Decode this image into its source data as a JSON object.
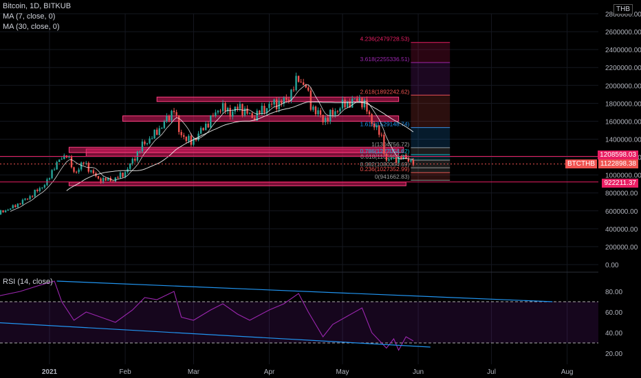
{
  "header": {
    "symbol_line": "Bitcoin, 1D, BITKUB",
    "ma7_label": "MA (7, close, 0)",
    "ma30_label": "MA (30, close, 0)",
    "currency": "THB"
  },
  "rsi_panel": {
    "label": "RSI (14, close)"
  },
  "price_badges": {
    "upper": "1208598.03",
    "ticker": "BTCTHB",
    "last": "1122898.38",
    "lower": "922211.37"
  },
  "colors": {
    "background": "#000000",
    "up": "#26a69a",
    "down": "#ef5350",
    "zone": "#d81b60",
    "ma": "#ffffff",
    "rsi": "#9c27b0",
    "trendline": "#2196f3"
  },
  "chart_data": [
    {
      "type": "candlestick",
      "title": "Bitcoin, 1D, BITKUB",
      "ylabel": "THB",
      "ylim": [
        0,
        2800000
      ],
      "y_ticks": [
        "2800000.00",
        "2600000.00",
        "2400000.00",
        "2200000.00",
        "2000000.00",
        "1800000.00",
        "1600000.00",
        "1400000.00",
        "1200000.00",
        "1000000.00",
        "800000.00",
        "600000.00",
        "400000.00",
        "200000.00",
        "0.00"
      ],
      "x_ticks": [
        "2021",
        "Feb",
        "Mar",
        "Apr",
        "May",
        "Jun",
        "Jul",
        "Aug"
      ],
      "close_path": [
        {
          "x": "2020-12-10",
          "y": 560000
        },
        {
          "x": "2020-12-17",
          "y": 640000
        },
        {
          "x": "2020-12-24",
          "y": 760000
        },
        {
          "x": "2020-12-31",
          "y": 920000
        },
        {
          "x": "2021-01-03",
          "y": 1100000
        },
        {
          "x": "2021-01-08",
          "y": 1240000
        },
        {
          "x": "2021-01-11",
          "y": 1020000
        },
        {
          "x": "2021-01-15",
          "y": 1140000
        },
        {
          "x": "2021-01-21",
          "y": 950000
        },
        {
          "x": "2021-01-27",
          "y": 940000
        },
        {
          "x": "2021-02-01",
          "y": 1030000
        },
        {
          "x": "2021-02-08",
          "y": 1330000
        },
        {
          "x": "2021-02-13",
          "y": 1450000
        },
        {
          "x": "2021-02-19",
          "y": 1650000
        },
        {
          "x": "2021-02-21",
          "y": 1750000
        },
        {
          "x": "2021-02-23",
          "y": 1480000
        },
        {
          "x": "2021-02-28",
          "y": 1360000
        },
        {
          "x": "2021-03-05",
          "y": 1520000
        },
        {
          "x": "2021-03-12",
          "y": 1760000
        },
        {
          "x": "2021-03-16",
          "y": 1700000
        },
        {
          "x": "2021-03-20",
          "y": 1760000
        },
        {
          "x": "2021-03-25",
          "y": 1640000
        },
        {
          "x": "2021-04-01",
          "y": 1780000
        },
        {
          "x": "2021-04-08",
          "y": 1830000
        },
        {
          "x": "2021-04-13",
          "y": 2080000
        },
        {
          "x": "2021-04-16",
          "y": 1980000
        },
        {
          "x": "2021-04-18",
          "y": 1780000
        },
        {
          "x": "2021-04-23",
          "y": 1620000
        },
        {
          "x": "2021-04-25",
          "y": 1640000
        },
        {
          "x": "2021-05-01",
          "y": 1780000
        },
        {
          "x": "2021-05-08",
          "y": 1850000
        },
        {
          "x": "2021-05-10",
          "y": 1780000
        },
        {
          "x": "2021-05-13",
          "y": 1600000
        },
        {
          "x": "2021-05-17",
          "y": 1420000
        },
        {
          "x": "2021-05-19",
          "y": 1150000
        },
        {
          "x": "2021-05-21",
          "y": 1180000
        },
        {
          "x": "2021-05-24",
          "y": 1180000
        },
        {
          "x": "2021-05-27",
          "y": 1200000
        },
        {
          "x": "2021-05-30",
          "y": 1122898
        }
      ],
      "support_resistance_zones": [
        {
          "from": "2021-01-16",
          "to": "2021-05-24",
          "low": 1210000,
          "high": 1290000
        },
        {
          "from": "2021-01-31",
          "to": "2021-05-24",
          "low": 1600000,
          "high": 1660000
        },
        {
          "from": "2021-02-14",
          "to": "2021-05-24",
          "low": 1820000,
          "high": 1870000
        },
        {
          "from": "2021-01-09",
          "to": "2021-05-26",
          "low": 1250000,
          "high": 1310000
        },
        {
          "from": "2021-01-09",
          "to": "2021-05-27",
          "low": 880000,
          "high": 920000
        }
      ],
      "fibonacci": [
        {
          "level": "0",
          "value": 941662.83,
          "label": "0(941662.83)",
          "color": "#9e9e9e"
        },
        {
          "level": "0.236",
          "value": 1027352.99,
          "label": "0.236(1027352.99)",
          "color": "#ef5350"
        },
        {
          "level": "0.382",
          "value": 1080364.69,
          "label": "0.382(1080364.69)",
          "color": "#9e9e9e"
        },
        {
          "level": "0.618",
          "value": 1165950.99,
          "label": "0.618(1165950.99)",
          "color": "#9e9e9e"
        },
        {
          "level": "0.786",
          "value": 1227054.62,
          "label": "0.786(1227054.62)",
          "color": "#00bcd4"
        },
        {
          "level": "1",
          "value": 1304756.72,
          "label": "1(1304756.72)",
          "color": "#9e9e9e"
        },
        {
          "level": "1.618",
          "value": 1529148.74,
          "label": "1.618(1529148.74)",
          "color": "#2196f3"
        },
        {
          "level": "2.618",
          "value": 1892242.62,
          "label": "2.618(1892242.62)",
          "color": "#ef5350"
        },
        {
          "level": "3.618",
          "value": 2255336.51,
          "label": "3.618(2255336.51)",
          "color": "#9c27b0"
        },
        {
          "level": "4.236",
          "value": 2479728.53,
          "label": "4.236(2479728.53)",
          "color": "#e91e63"
        }
      ],
      "horizontal_lines": [
        1208598.03,
        922211.37
      ]
    },
    {
      "type": "line",
      "title": "RSI (14, close)",
      "ylim": [
        10,
        100
      ],
      "y_ticks": [
        "80.00",
        "60.00",
        "40.00",
        "20.00"
      ],
      "overbought": 70,
      "oversold": 30,
      "rsi_path": [
        {
          "x": "2020-12-10",
          "y": 75
        },
        {
          "x": "2020-12-20",
          "y": 80
        },
        {
          "x": "2020-12-28",
          "y": 86
        },
        {
          "x": "2021-01-03",
          "y": 90
        },
        {
          "x": "2021-01-06",
          "y": 70
        },
        {
          "x": "2021-01-11",
          "y": 52
        },
        {
          "x": "2021-01-16",
          "y": 60
        },
        {
          "x": "2021-01-22",
          "y": 55
        },
        {
          "x": "2021-01-28",
          "y": 50
        },
        {
          "x": "2021-02-04",
          "y": 62
        },
        {
          "x": "2021-02-09",
          "y": 74
        },
        {
          "x": "2021-02-14",
          "y": 72
        },
        {
          "x": "2021-02-21",
          "y": 80
        },
        {
          "x": "2021-02-24",
          "y": 55
        },
        {
          "x": "2021-03-01",
          "y": 52
        },
        {
          "x": "2021-03-08",
          "y": 62
        },
        {
          "x": "2021-03-13",
          "y": 68
        },
        {
          "x": "2021-03-19",
          "y": 58
        },
        {
          "x": "2021-03-24",
          "y": 52
        },
        {
          "x": "2021-04-01",
          "y": 62
        },
        {
          "x": "2021-04-07",
          "y": 68
        },
        {
          "x": "2021-04-13",
          "y": 78
        },
        {
          "x": "2021-04-17",
          "y": 60
        },
        {
          "x": "2021-04-23",
          "y": 36
        },
        {
          "x": "2021-04-27",
          "y": 48
        },
        {
          "x": "2021-05-03",
          "y": 56
        },
        {
          "x": "2021-05-09",
          "y": 64
        },
        {
          "x": "2021-05-13",
          "y": 40
        },
        {
          "x": "2021-05-19",
          "y": 25
        },
        {
          "x": "2021-05-22",
          "y": 34
        },
        {
          "x": "2021-05-24",
          "y": 23
        },
        {
          "x": "2021-05-27",
          "y": 36
        },
        {
          "x": "2021-05-30",
          "y": 32
        }
      ],
      "trendlines": [
        {
          "from": {
            "x": "2021-01-04",
            "y": 90
          },
          "to": {
            "x": "2021-07-26",
            "y": 70
          }
        },
        {
          "from": {
            "x": "2020-12-01",
            "y": 51
          },
          "to": {
            "x": "2021-06-06",
            "y": 26
          }
        }
      ]
    }
  ]
}
